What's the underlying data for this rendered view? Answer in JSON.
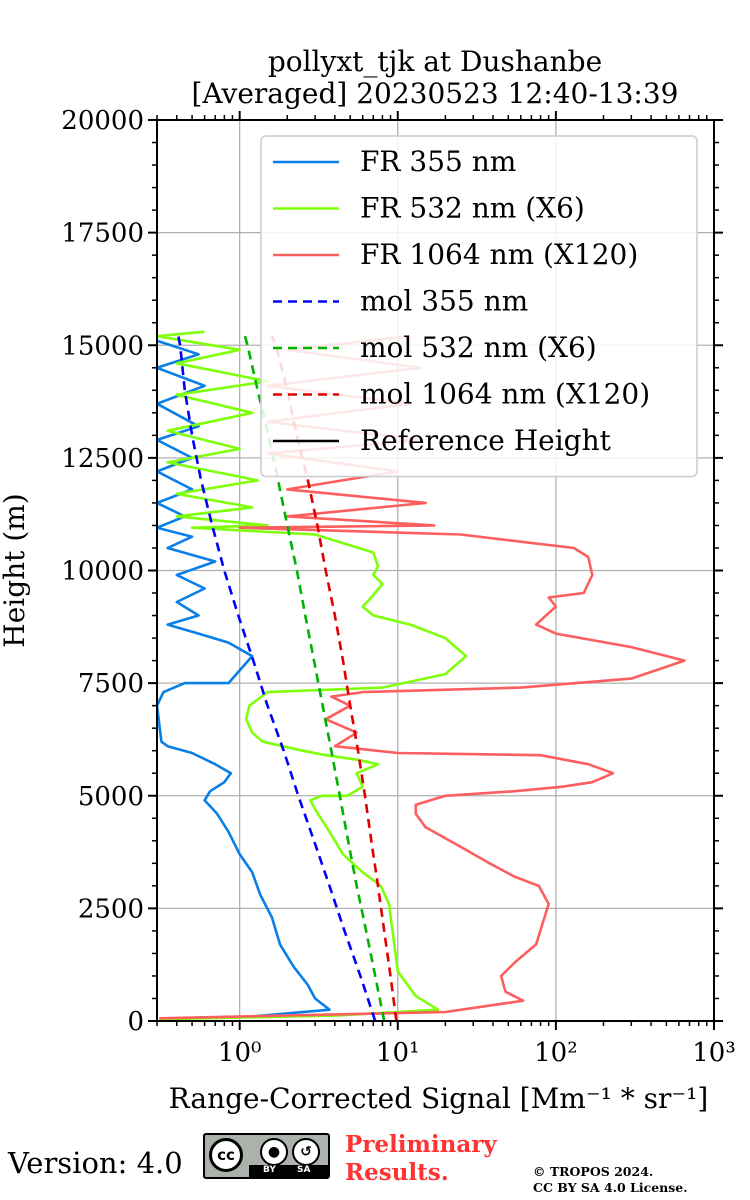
{
  "chart_data": {
    "type": "line",
    "title": [
      "pollyxt_tjk at Dushanbe",
      "[Averaged] 20230523 12:40-13:39"
    ],
    "xlabel": "Range-Corrected Signal [Mm⁻¹ * sr⁻¹]",
    "ylabel": "Height (m)",
    "xscale": "log",
    "xlim": [
      0.3,
      1000
    ],
    "ylim": [
      0,
      20000
    ],
    "x_ticks": [
      {
        "value": 1,
        "label": "10⁰"
      },
      {
        "value": 10,
        "label": "10¹"
      },
      {
        "value": 100,
        "label": "10²"
      },
      {
        "value": 1000,
        "label": "10³"
      }
    ],
    "y_ticks": [
      0,
      2500,
      5000,
      7500,
      10000,
      12500,
      15000,
      17500,
      20000
    ],
    "grid": true,
    "legend_position": "top-right",
    "series": [
      {
        "name": "FR 355 nm",
        "color": "#0a7fe8",
        "style": "solid",
        "points": [
          [
            0.31,
            50
          ],
          [
            1.2,
            100
          ],
          [
            3.7,
            250
          ],
          [
            3.0,
            500
          ],
          [
            2.7,
            800
          ],
          [
            2.2,
            1200
          ],
          [
            1.8,
            1700
          ],
          [
            1.6,
            2300
          ],
          [
            1.35,
            2800
          ],
          [
            1.2,
            3300
          ],
          [
            1.0,
            3700
          ],
          [
            0.85,
            4200
          ],
          [
            0.72,
            4600
          ],
          [
            0.6,
            4900
          ],
          [
            0.65,
            5100
          ],
          [
            0.8,
            5300
          ],
          [
            0.88,
            5500
          ],
          [
            0.7,
            5700
          ],
          [
            0.5,
            5950
          ],
          [
            0.35,
            6100
          ],
          [
            0.32,
            6200
          ],
          [
            0.3,
            7000
          ],
          [
            0.33,
            7300
          ],
          [
            0.45,
            7500
          ],
          [
            0.85,
            7500
          ],
          [
            1.2,
            8100
          ],
          [
            0.85,
            8400
          ],
          [
            0.55,
            8600
          ],
          [
            0.35,
            8800
          ],
          [
            0.55,
            9000
          ],
          [
            0.4,
            9300
          ],
          [
            0.6,
            9600
          ],
          [
            0.4,
            9900
          ],
          [
            0.7,
            10200
          ],
          [
            0.35,
            10500
          ],
          [
            0.5,
            10750
          ],
          [
            0.3,
            10950
          ],
          [
            0.45,
            11200
          ],
          [
            0.3,
            11500
          ],
          [
            0.5,
            11800
          ],
          [
            0.3,
            12200
          ],
          [
            0.5,
            12500
          ],
          [
            0.3,
            12900
          ],
          [
            0.55,
            13200
          ],
          [
            0.3,
            13700
          ],
          [
            0.6,
            14100
          ],
          [
            0.3,
            14500
          ],
          [
            0.55,
            14800
          ],
          [
            0.3,
            15100
          ]
        ]
      },
      {
        "name": "FR 532 nm (X6)",
        "color": "#7fff0a",
        "style": "solid",
        "points": [
          [
            0.31,
            40
          ],
          [
            4.0,
            120
          ],
          [
            18.0,
            250
          ],
          [
            13.0,
            550
          ],
          [
            10.0,
            1100
          ],
          [
            9.5,
            1700
          ],
          [
            8.8,
            2600
          ],
          [
            7.8,
            3000
          ],
          [
            6.0,
            3300
          ],
          [
            4.5,
            3700
          ],
          [
            3.7,
            4200
          ],
          [
            3.0,
            4700
          ],
          [
            2.8,
            4900
          ],
          [
            3.3,
            5000
          ],
          [
            4.8,
            5000
          ],
          [
            6.0,
            5200
          ],
          [
            5.5,
            5500
          ],
          [
            7.5,
            5700
          ],
          [
            5.5,
            5800
          ],
          [
            3.5,
            5900
          ],
          [
            2.5,
            6000
          ],
          [
            1.4,
            6200
          ],
          [
            1.2,
            6400
          ],
          [
            1.1,
            6700
          ],
          [
            1.15,
            7000
          ],
          [
            1.5,
            7300
          ],
          [
            8.0,
            7400
          ],
          [
            20.0,
            7700
          ],
          [
            27.0,
            8100
          ],
          [
            20.0,
            8500
          ],
          [
            12.0,
            8800
          ],
          [
            7.0,
            9000
          ],
          [
            6.0,
            9200
          ],
          [
            6.8,
            9400
          ],
          [
            8.0,
            9700
          ],
          [
            7.0,
            9900
          ],
          [
            7.5,
            10100
          ],
          [
            7.0,
            10400
          ],
          [
            3.0,
            10800
          ],
          [
            0.5,
            10950
          ],
          [
            1.5,
            11000
          ],
          [
            0.4,
            11200
          ],
          [
            1.2,
            11400
          ],
          [
            0.4,
            11700
          ],
          [
            1.3,
            12000
          ],
          [
            0.35,
            12400
          ],
          [
            1.0,
            12700
          ],
          [
            0.35,
            13100
          ],
          [
            1.2,
            13500
          ],
          [
            0.4,
            13900
          ],
          [
            1.5,
            14200
          ],
          [
            0.4,
            14600
          ],
          [
            1.0,
            14900
          ],
          [
            0.3,
            15200
          ],
          [
            0.6,
            15300
          ]
        ]
      },
      {
        "name": "FR 1064 nm (X120)",
        "color": "#fd5f5f",
        "style": "solid",
        "points": [
          [
            0.31,
            60
          ],
          [
            20.0,
            200
          ],
          [
            62.0,
            450
          ],
          [
            48.0,
            650
          ],
          [
            45.0,
            1000
          ],
          [
            55.0,
            1300
          ],
          [
            75.0,
            1700
          ],
          [
            90.0,
            2600
          ],
          [
            78.0,
            3000
          ],
          [
            55.0,
            3200
          ],
          [
            38.0,
            3500
          ],
          [
            24.0,
            3900
          ],
          [
            15.0,
            4300
          ],
          [
            13.0,
            4600
          ],
          [
            13.0,
            4800
          ],
          [
            20.0,
            5000
          ],
          [
            55.0,
            5100
          ],
          [
            110.0,
            5200
          ],
          [
            170.0,
            5300
          ],
          [
            230.0,
            5500
          ],
          [
            160.0,
            5700
          ],
          [
            80.0,
            5900
          ],
          [
            10.0,
            5950
          ],
          [
            4.0,
            6100
          ],
          [
            5.5,
            6400
          ],
          [
            3.5,
            6700
          ],
          [
            5.0,
            7000
          ],
          [
            3.8,
            7200
          ],
          [
            6.0,
            7300
          ],
          [
            60.0,
            7400
          ],
          [
            300.0,
            7600
          ],
          [
            650.0,
            8000
          ],
          [
            300.0,
            8300
          ],
          [
            100.0,
            8600
          ],
          [
            75.0,
            8800
          ],
          [
            100.0,
            9200
          ],
          [
            90.0,
            9400
          ],
          [
            150.0,
            9500
          ],
          [
            170.0,
            9900
          ],
          [
            160.0,
            10300
          ],
          [
            130.0,
            10500
          ],
          [
            25.0,
            10800
          ],
          [
            1.0,
            10950
          ],
          [
            17.0,
            11000
          ],
          [
            2.0,
            11200
          ],
          [
            15.0,
            11500
          ],
          [
            2.0,
            11800
          ],
          [
            10.0,
            12200
          ],
          [
            1.5,
            12600
          ],
          [
            14.0,
            12900
          ],
          [
            1.5,
            13300
          ],
          [
            12.0,
            13700
          ],
          [
            1.5,
            14100
          ],
          [
            14.0,
            14500
          ],
          [
            2.0,
            14900
          ],
          [
            12.0,
            15200
          ]
        ]
      },
      {
        "name": "mol 355 nm",
        "color": "#0000ff",
        "style": "dashed",
        "points": [
          [
            7.2,
            0
          ],
          [
            5.8,
            1000
          ],
          [
            4.6,
            2000
          ],
          [
            3.7,
            3000
          ],
          [
            2.95,
            4000
          ],
          [
            2.35,
            5000
          ],
          [
            1.9,
            6000
          ],
          [
            1.5,
            7000
          ],
          [
            1.22,
            8000
          ],
          [
            0.98,
            9000
          ],
          [
            0.8,
            10000
          ],
          [
            0.67,
            11000
          ],
          [
            0.57,
            12000
          ],
          [
            0.5,
            13000
          ],
          [
            0.45,
            14000
          ],
          [
            0.42,
            15000
          ],
          [
            0.41,
            15200
          ]
        ]
      },
      {
        "name": "mol 532 nm (X6)",
        "color": "#00b300",
        "style": "dashed",
        "points": [
          [
            8.2,
            0
          ],
          [
            7.2,
            1000
          ],
          [
            6.3,
            2000
          ],
          [
            5.5,
            3000
          ],
          [
            4.85,
            4000
          ],
          [
            4.3,
            5000
          ],
          [
            3.8,
            6000
          ],
          [
            3.35,
            7000
          ],
          [
            2.95,
            8000
          ],
          [
            2.6,
            9000
          ],
          [
            2.3,
            10000
          ],
          [
            2.0,
            11000
          ],
          [
            1.75,
            12000
          ],
          [
            1.52,
            13000
          ],
          [
            1.3,
            14000
          ],
          [
            1.12,
            15000
          ],
          [
            1.08,
            15200
          ]
        ]
      },
      {
        "name": "mol 1064 nm (X120)",
        "color": "#e00000",
        "style": "dashed",
        "points": [
          [
            9.8,
            0
          ],
          [
            9.0,
            1000
          ],
          [
            8.2,
            2000
          ],
          [
            7.5,
            3000
          ],
          [
            6.8,
            4000
          ],
          [
            6.2,
            5000
          ],
          [
            5.6,
            6000
          ],
          [
            5.0,
            7000
          ],
          [
            4.5,
            8000
          ],
          [
            4.0,
            9000
          ],
          [
            3.5,
            10000
          ],
          [
            3.1,
            11000
          ],
          [
            2.7,
            12000
          ],
          [
            2.3,
            13000
          ],
          [
            2.0,
            14000
          ],
          [
            1.7,
            15000
          ],
          [
            1.6,
            15200
          ]
        ]
      },
      {
        "name": "Reference Height",
        "color": "#000000",
        "style": "solid",
        "points": []
      }
    ]
  },
  "footer": {
    "version": "Version: 4.0",
    "cc_text": "cc",
    "by_text": "BY",
    "sa_text": "SA",
    "preliminary_line1": "Preliminary",
    "preliminary_line2": "Results.",
    "copyright_line1": "© TROPOS 2024.",
    "copyright_line2": "CC BY SA 4.0 License."
  }
}
